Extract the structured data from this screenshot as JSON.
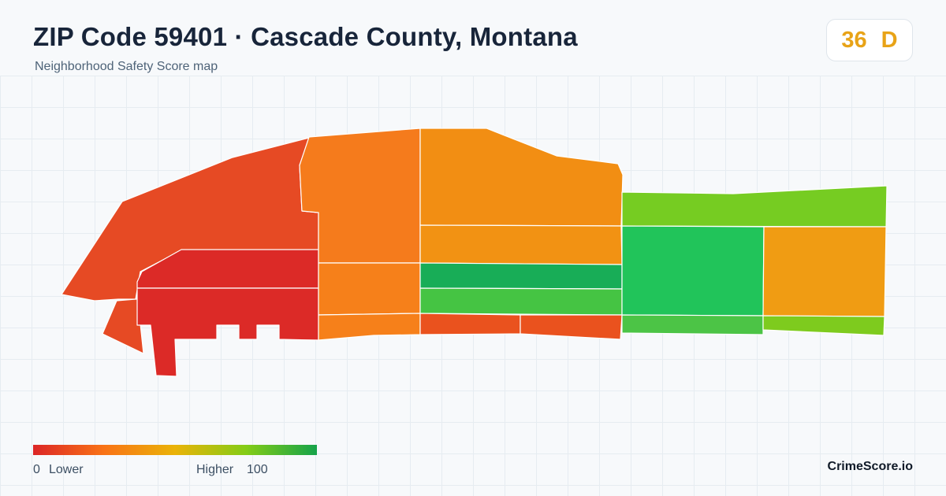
{
  "header": {
    "title": "ZIP Code 59401 · Cascade County, Montana",
    "subtitle": "Neighborhood Safety Score map"
  },
  "score_badge": {
    "score": "36",
    "grade": "D",
    "color": "#e8a317"
  },
  "legend": {
    "min_value": "0",
    "min_label": "Lower",
    "max_label": "Higher",
    "max_value": "100",
    "gradient_colors": [
      "#dc2626",
      "#f97316",
      "#eab308",
      "#84cc16",
      "#16a34a"
    ]
  },
  "brand": "CrimeScore.io",
  "map": {
    "zip": "59401",
    "region_colors": {
      "west_outer": "#e64a24",
      "west_inner": "#dc2a27",
      "north_central_west": "#f57b1c",
      "north_central_east": "#f28e13",
      "row_mid_orange": "#f29213",
      "strip_dark_green": "#18ad57",
      "strip_green": "#45c443",
      "south_orange_red": "#ea521e",
      "east_top_green": "#76cc22",
      "east_center_green": "#21c45a",
      "east_orange": "#f09c13",
      "east_bottom_lime": "#7ecb1e",
      "south_green": "#4cc446",
      "middle_band_orange": "#f6801a"
    }
  }
}
